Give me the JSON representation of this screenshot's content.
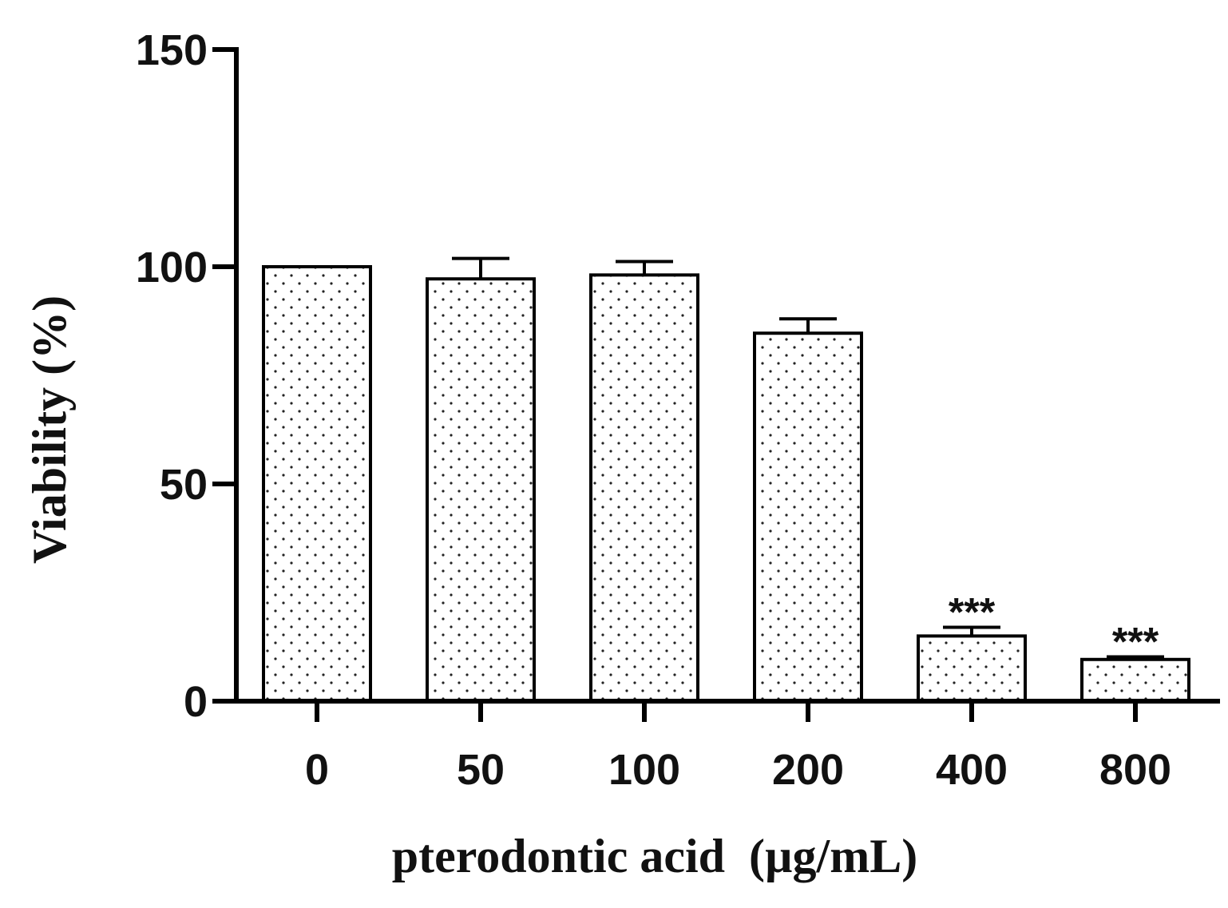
{
  "chart_data": {
    "type": "bar",
    "title": "",
    "xlabel": "pterodontic acid  (µg/mL)",
    "ylabel": "Viability (%)",
    "ylim": [
      0,
      150
    ],
    "yticks": [
      0,
      50,
      100,
      150
    ],
    "categories": [
      "0",
      "50",
      "100",
      "200",
      "400",
      "800"
    ],
    "values": [
      100,
      97.2,
      98.1,
      84.7,
      15,
      9.6
    ],
    "error": [
      0,
      4.7,
      3.1,
      3.3,
      2,
      0.6
    ],
    "annotations": [
      "",
      "",
      "",
      "",
      "***",
      "***"
    ],
    "bar_fill": "dotted",
    "grid": false,
    "legend": "none"
  }
}
